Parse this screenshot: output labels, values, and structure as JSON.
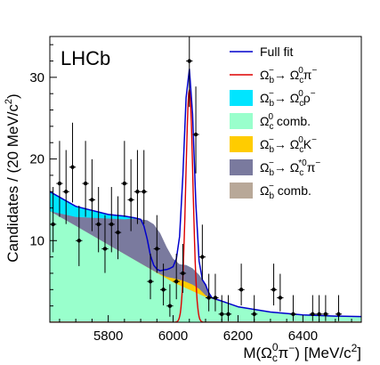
{
  "chart_data": {
    "type": "line",
    "experiment_label": "LHCb",
    "xlabel": "M(Ω_c^0π^−) [MeV/c^2]",
    "ylabel": "Candidates / (20 MeV/c^2)",
    "xlim": [
      5620,
      6580
    ],
    "ylim": [
      0,
      35
    ],
    "x_ticks": [
      5800,
      6000,
      6200,
      6400
    ],
    "y_ticks": [
      10,
      20,
      30
    ],
    "grid": false,
    "legend_position": "top-right",
    "legend": [
      {
        "label": "Full fit",
        "style": "line",
        "color": "#0000cc"
      },
      {
        "label": "Ω_b^−→ Ω_c^0π^−",
        "style": "line",
        "color": "#dd0000"
      },
      {
        "label": "Ω_b^−→ Ω_c^0ρ^−",
        "style": "fill",
        "color": "#00e5ff"
      },
      {
        "label": "Ω_c^0 comb.",
        "style": "fill",
        "color": "#99ffcc"
      },
      {
        "label": "Ω_b^−→ Ω_c^0K^−",
        "style": "fill",
        "color": "#ffcc00"
      },
      {
        "label": "Ω_b^−→ Ω_c^*0π^−",
        "style": "fill",
        "color": "#7a7a9e"
      },
      {
        "label": "Ω_b^− comb.",
        "style": "fill",
        "color": "#b8a898"
      }
    ],
    "data_points": {
      "x": [
        5630,
        5650,
        5670,
        5690,
        5710,
        5730,
        5750,
        5770,
        5790,
        5810,
        5830,
        5850,
        5870,
        5890,
        5910,
        5930,
        5950,
        5970,
        5990,
        6010,
        6030,
        6050,
        6070,
        6090,
        6110,
        6130,
        6150,
        6170,
        6190,
        6210,
        6230,
        6250,
        6270,
        6290,
        6310,
        6330,
        6350,
        6370,
        6390,
        6410,
        6430,
        6450,
        6470,
        6490,
        6510,
        6530,
        6550,
        6570
      ],
      "y": [
        12,
        17,
        16,
        19,
        10,
        17,
        15,
        12,
        9,
        12,
        11,
        17,
        15,
        16,
        16,
        5,
        9,
        4,
        2,
        5,
        6,
        32,
        23,
        8,
        3,
        3,
        1,
        1,
        0,
        4,
        0,
        1,
        0,
        0,
        4,
        3,
        0,
        1,
        0,
        0,
        1,
        1,
        1,
        0,
        1,
        0,
        0,
        0
      ]
    },
    "series": [
      {
        "name": "Ω_c^0 comb.",
        "x": [
          5620,
          5700,
          5800,
          5900,
          6000,
          6100,
          6200,
          6300,
          6400,
          6500,
          6580
        ],
        "y": [
          13.6,
          11.8,
          9.5,
          7.2,
          4.9,
          3.1,
          1.9,
          1.25,
          0.9,
          0.75,
          0.7
        ]
      },
      {
        "name": "Ω_b^− comb.",
        "x": [
          5620,
          5700,
          5800,
          5900,
          6000,
          6100,
          6200,
          6300,
          6400,
          6500,
          6580
        ],
        "y": [
          13.6,
          11.8,
          9.5,
          7.2,
          4.9,
          3.1,
          1.9,
          1.25,
          0.9,
          0.75,
          0.7
        ]
      },
      {
        "name": "Ω_b^−→ Ω_c^0K^−",
        "x": [
          5620,
          5900,
          5940,
          5960,
          5980,
          6000,
          6020,
          6040,
          6060,
          6080,
          6100,
          6120,
          6200,
          6300,
          6400,
          6500,
          6580
        ],
        "y": [
          13.6,
          7.2,
          6.3,
          5.9,
          5.55,
          5.4,
          5.2,
          4.95,
          4.6,
          4.1,
          3.3,
          2.85,
          1.9,
          1.25,
          0.9,
          0.75,
          0.7
        ]
      },
      {
        "name": "Ω_b^−→ Ω_c^*0π^−",
        "x": [
          5620,
          5700,
          5800,
          5850,
          5880,
          5900,
          5920,
          5940,
          5960,
          5980,
          6000,
          6020,
          6040,
          6060,
          6080,
          6100,
          6120,
          6200,
          6300,
          6400,
          6500,
          6580
        ],
        "y": [
          13.6,
          12.9,
          12.7,
          12.6,
          12.7,
          12.6,
          12.5,
          12.0,
          10.9,
          9.2,
          7.8,
          7.1,
          7.0,
          6.6,
          5.8,
          4.6,
          3.0,
          1.9,
          1.25,
          0.9,
          0.75,
          0.7
        ]
      },
      {
        "name": "Ω_b^−→ Ω_c^0ρ^−",
        "x": [
          5620,
          5700,
          5800,
          5850,
          5880,
          5900,
          5920,
          5940,
          5960,
          5980,
          6000,
          6020,
          6040,
          6060,
          6080,
          6100,
          6120,
          6200,
          6300,
          6400,
          6500,
          6580
        ],
        "y": [
          16.0,
          14.2,
          13.2,
          13.0,
          12.8,
          12.6,
          10.5,
          7.0,
          6.3,
          6.4,
          6.8,
          7.1,
          7.0,
          6.6,
          5.8,
          4.6,
          3.0,
          1.9,
          1.25,
          0.9,
          0.75,
          0.7
        ]
      },
      {
        "name": "Ω_b^−→ Ω_c^0π^−",
        "peak_mass": 6050,
        "peak_height": 28.5,
        "width_sigma": 11
      },
      {
        "name": "Full fit",
        "x": [
          5620,
          5700,
          5800,
          5850,
          5880,
          5900,
          5910,
          5920,
          5930,
          5940,
          5950,
          5960,
          5970,
          5980,
          5990,
          6000,
          6010,
          6020,
          6030,
          6040,
          6050,
          6060,
          6070,
          6080,
          6090,
          6100,
          6110,
          6120,
          6150,
          6200,
          6300,
          6400,
          6500,
          6580
        ],
        "y": [
          16.0,
          14.2,
          13.2,
          13.0,
          12.8,
          12.6,
          11.8,
          10.2,
          8.2,
          7.0,
          6.5,
          6.3,
          6.4,
          6.45,
          6.6,
          6.8,
          7.8,
          10.5,
          18.0,
          27.5,
          31.0,
          25.5,
          14.5,
          7.5,
          5.2,
          4.6,
          3.6,
          3.0,
          2.6,
          1.9,
          1.25,
          0.9,
          0.75,
          0.7
        ]
      }
    ]
  }
}
